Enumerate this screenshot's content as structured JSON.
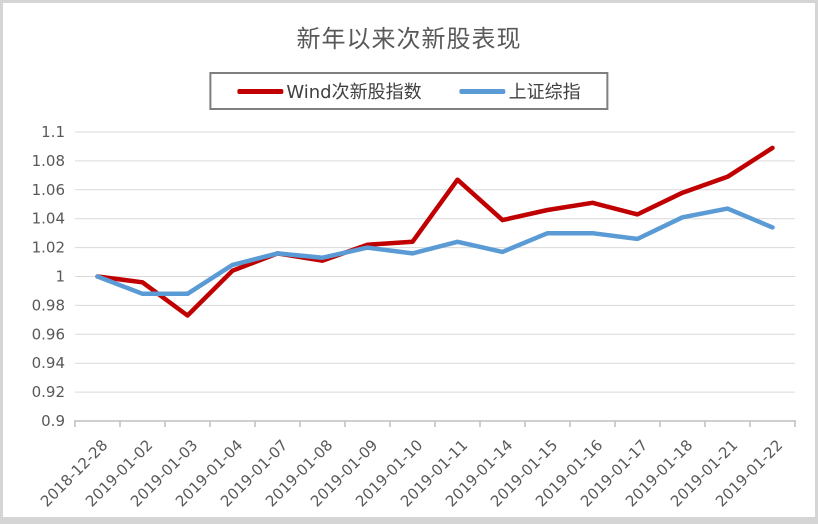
{
  "chart_data": {
    "type": "line",
    "title": "新年以来次新股表现",
    "categories": [
      "2018-12-28",
      "2019-01-02",
      "2019-01-03",
      "2019-01-04",
      "2019-01-07",
      "2019-01-08",
      "2019-01-09",
      "2019-01-10",
      "2019-01-11",
      "2019-01-14",
      "2019-01-15",
      "2019-01-16",
      "2019-01-17",
      "2019-01-18",
      "2019-01-21",
      "2019-01-22"
    ],
    "series": [
      {
        "name": "Wind次新股指数",
        "color": "#c00000",
        "values": [
          1.0,
          0.996,
          0.973,
          1.004,
          1.016,
          1.011,
          1.022,
          1.024,
          1.067,
          1.039,
          1.046,
          1.051,
          1.043,
          1.058,
          1.069,
          1.089
        ]
      },
      {
        "name": "上证综指",
        "color": "#5b9bd5",
        "values": [
          1.0,
          0.988,
          0.988,
          1.008,
          1.016,
          1.013,
          1.02,
          1.016,
          1.024,
          1.017,
          1.03,
          1.03,
          1.026,
          1.041,
          1.047,
          1.034
        ]
      }
    ],
    "xlabel": "",
    "ylabel": "",
    "ylim": [
      0.9,
      1.1
    ],
    "ytick_values": [
      1.1,
      1.08,
      1.06,
      1.04,
      1.02,
      1.0,
      0.98,
      0.96,
      0.94,
      0.92,
      0.9
    ],
    "ytick_labels": [
      "1.1",
      "1.08",
      "1.06",
      "1.04",
      "1.02",
      "1",
      "0.98",
      "0.96",
      "0.94",
      "0.92",
      "0.9"
    ],
    "grid": true,
    "legend_position": "top-center"
  },
  "styles": {
    "background": "#ffffff",
    "grid_color": "#d9d9d9",
    "axis_color": "#bfbfbf",
    "tick_label_color": "#595959",
    "title_color": "#595959",
    "legend_text_color": "#404040",
    "legend_border_color": "#7f7f7f",
    "frame_border_color": "#d5d5d5"
  }
}
